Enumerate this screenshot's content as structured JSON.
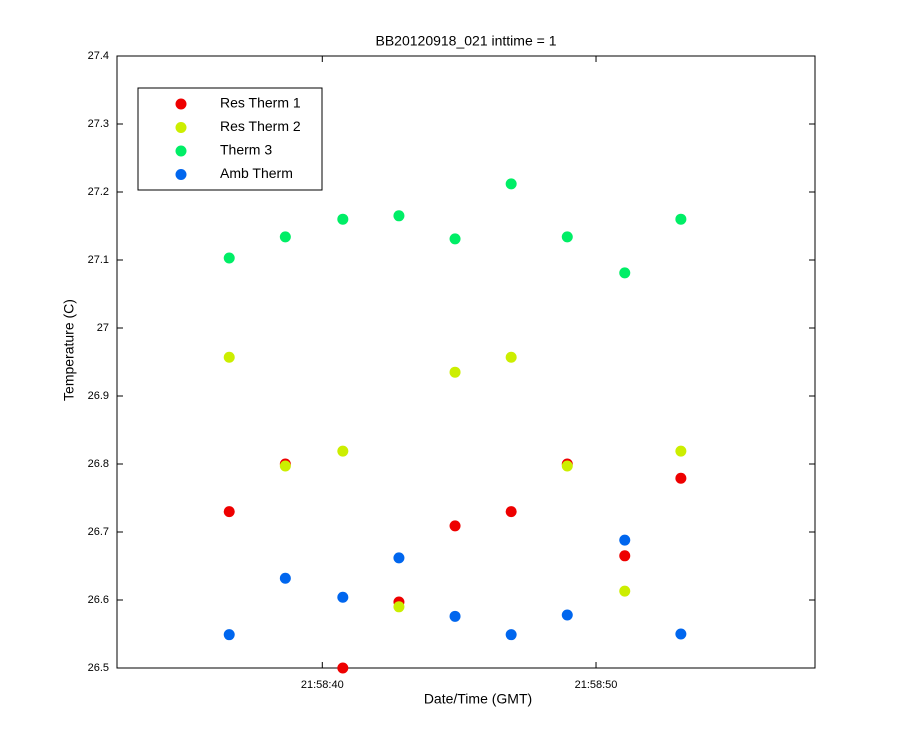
{
  "chart_data": {
    "type": "scatter",
    "title": "BB20120918_021 inttime = 1",
    "x_label": "Date/Time (GMT)",
    "y_label": "Temperature (C)",
    "x": [
      36.6,
      38.65,
      40.75,
      42.8,
      44.85,
      46.9,
      48.95,
      51.05,
      53.1
    ],
    "series": [
      {
        "name": "Res Therm 1",
        "color": "#ee0000",
        "values": [
          26.73,
          26.8,
          26.5,
          26.597,
          26.709,
          26.73,
          26.8,
          26.665,
          26.779
        ]
      },
      {
        "name": "Res Therm 2",
        "color": "#ccee00",
        "values": [
          26.957,
          26.797,
          26.819,
          26.59,
          26.935,
          26.957,
          26.797,
          26.613,
          26.819
        ]
      },
      {
        "name": "Therm 3",
        "color": "#00ee66",
        "values": [
          27.103,
          27.134,
          27.16,
          27.165,
          27.131,
          27.212,
          27.134,
          27.081,
          27.16
        ]
      },
      {
        "name": "Amb Therm",
        "color": "#0066ee",
        "values": [
          26.549,
          26.632,
          26.604,
          26.662,
          26.576,
          26.549,
          26.578,
          26.688,
          26.55
        ]
      }
    ],
    "xlim": [
      32.5,
      58
    ],
    "xticks": [
      {
        "value": 40,
        "label": "21:58:40"
      },
      {
        "value": 50,
        "label": "21:58:50"
      }
    ],
    "ylim": [
      26.5,
      27.4
    ],
    "yticks": [
      26.5,
      26.6,
      26.7,
      26.8,
      26.9,
      27,
      27.1,
      27.2,
      27.3,
      27.4
    ],
    "legend": "upper-left"
  }
}
